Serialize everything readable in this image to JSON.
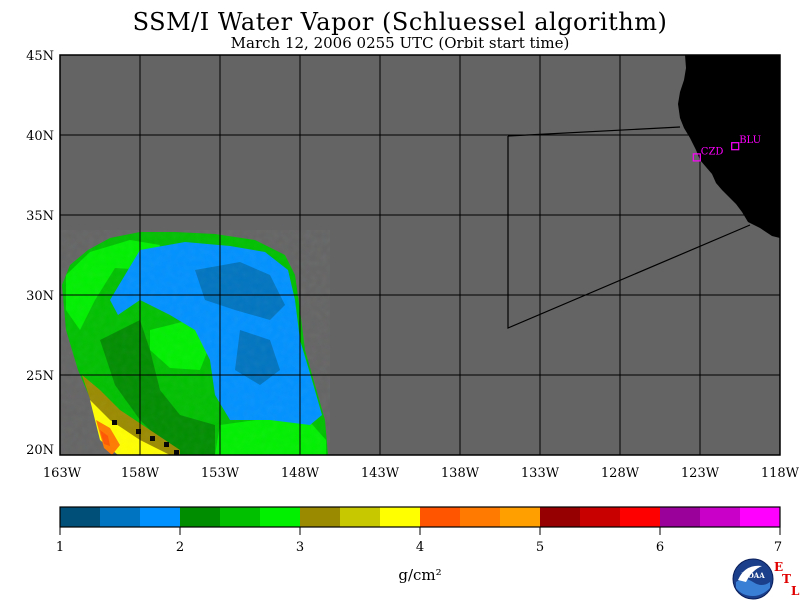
{
  "header": {
    "title": "SSM/I Water Vapor (Schluessel algorithm)",
    "subtitle": "March 12, 2006  0255 UTC  (Orbit start time)"
  },
  "map": {
    "lat_labels": [
      "45N",
      "40N",
      "35N",
      "30N",
      "25N",
      "20N"
    ],
    "lon_labels": [
      "163W",
      "158W",
      "153W",
      "148W",
      "143W",
      "138W",
      "133W",
      "128W",
      "123W",
      "118W"
    ],
    "stations": [
      {
        "code": "CZD",
        "lat": 38.6,
        "lon": -123.2
      },
      {
        "code": "BLU",
        "lat": 39.3,
        "lon": -120.8
      }
    ],
    "colors": {
      "ocean": "#646464",
      "land": "#000000",
      "station": "#ff00ff",
      "grid": "#000000"
    }
  },
  "colorbar": {
    "tick_labels": [
      "1",
      "2",
      "3",
      "4",
      "5",
      "6",
      "7"
    ],
    "unit_label": "g/cm²",
    "colors": [
      "#004f79",
      "#0074c0",
      "#0091ff",
      "#008d00",
      "#00c000",
      "#00f000",
      "#9a8a00",
      "#c8c800",
      "#ffff00",
      "#ff5500",
      "#ff7a00",
      "#ffa000",
      "#960000",
      "#c80000",
      "#ff0000",
      "#9a009a",
      "#c800c8",
      "#ff00ff"
    ]
  },
  "logo": {
    "name": "noaa-logo",
    "text": "NOAA",
    "etl_letters": [
      "E",
      "T",
      "L"
    ]
  }
}
